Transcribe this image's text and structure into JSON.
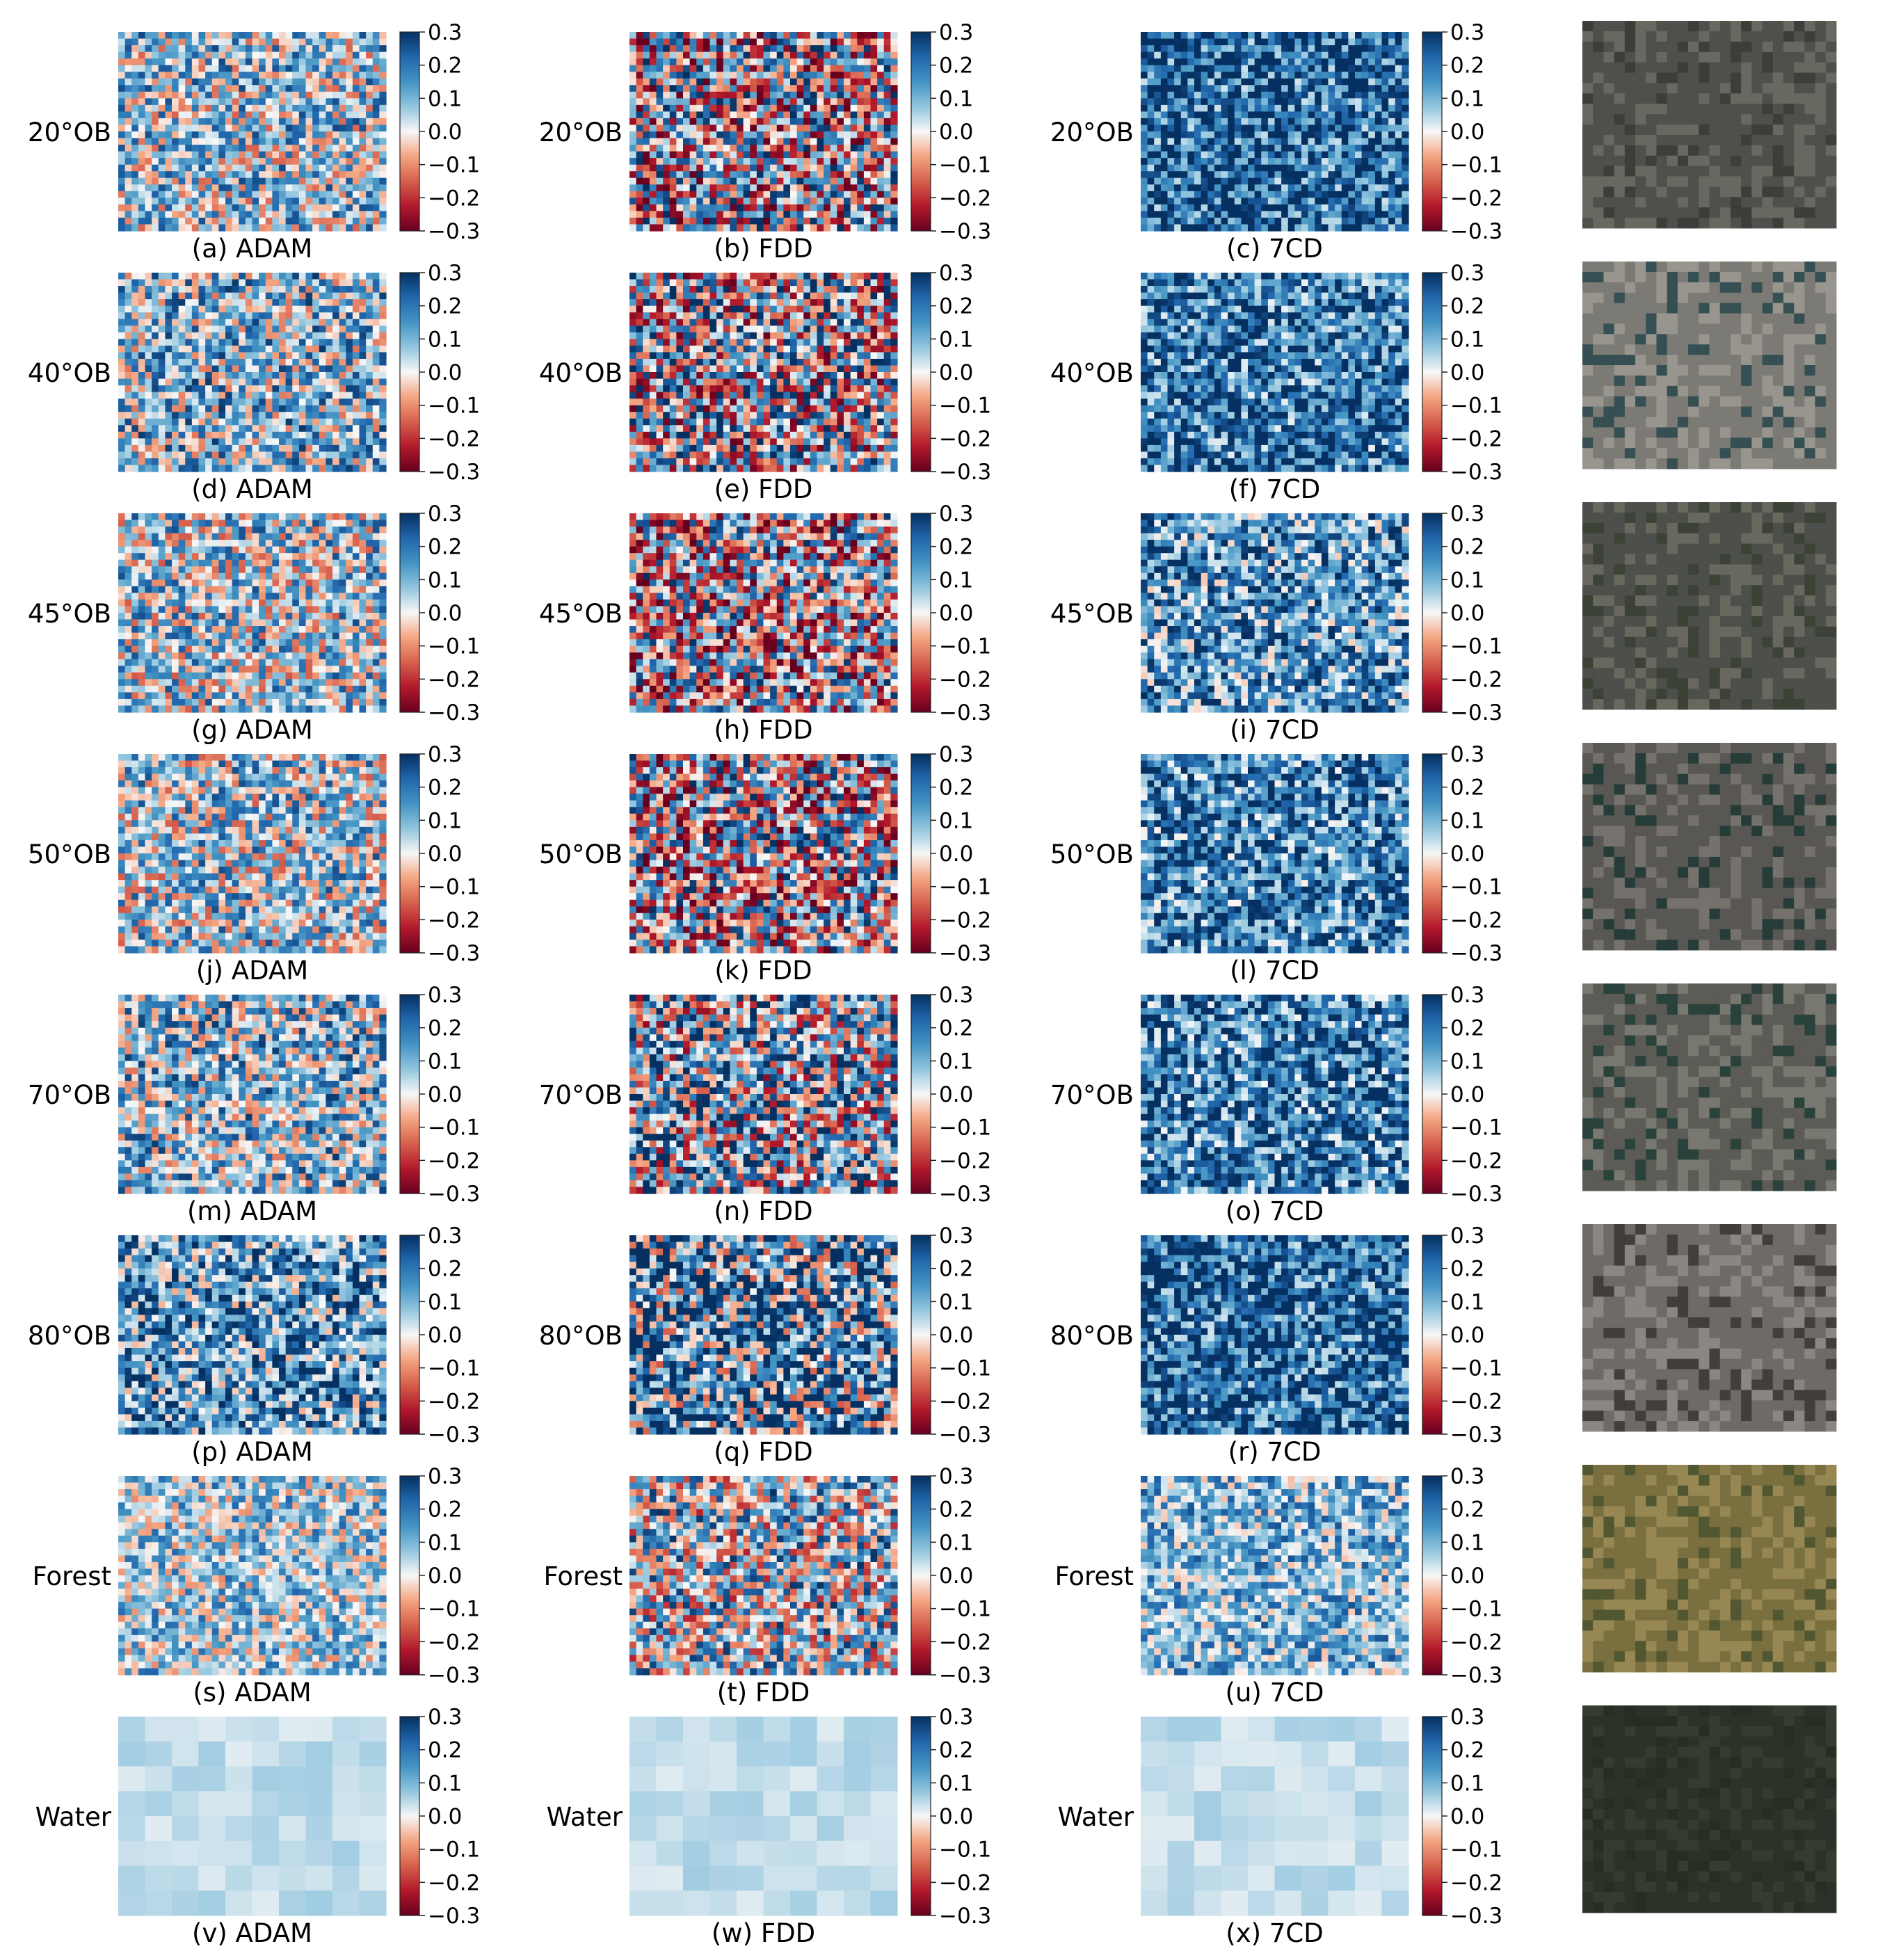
{
  "figure": {
    "colorbar": {
      "ticks": [
        "0.3",
        "0.2",
        "0.1",
        "0.0",
        "−0.1",
        "−0.2",
        "−0.3"
      ],
      "range": [
        -0.3,
        0.3
      ],
      "colormap": "RdBu",
      "colors": {
        "low": "#67001f",
        "mid": "#f7f7f7",
        "high": "#053061"
      }
    },
    "columns": [
      "ADAM",
      "FDD",
      "7CD"
    ],
    "rows": [
      {
        "label": "20°OB",
        "captions": [
          "(a) ADAM",
          "(b) FDD",
          "(c) 7CD"
        ],
        "mean_values": [
          0.06,
          0.0,
          0.22
        ],
        "photo_colors": [
          "#4f4f4c",
          "#6a6a64",
          "#3a3c38"
        ]
      },
      {
        "label": "40°OB",
        "captions": [
          "(d) ADAM",
          "(e) FDD",
          "(f) 7CD"
        ],
        "mean_values": [
          0.08,
          0.02,
          0.2
        ],
        "photo_colors": [
          "#7c7a74",
          "#9a9890",
          "#2e4a50"
        ]
      },
      {
        "label": "45°OB",
        "captions": [
          "(g) ADAM",
          "(h) FDD",
          "(i) 7CD"
        ],
        "mean_values": [
          0.05,
          -0.02,
          0.15
        ],
        "photo_colors": [
          "#4e4f4a",
          "#6c6a62",
          "#3b4034"
        ]
      },
      {
        "label": "50°OB",
        "captions": [
          "(j) ADAM",
          "(k) FDD",
          "(l) 7CD"
        ],
        "mean_values": [
          0.05,
          -0.01,
          0.18
        ],
        "photo_colors": [
          "#595853",
          "#787670",
          "#1f3a35"
        ]
      },
      {
        "label": "70°OB",
        "captions": [
          "(m) ADAM",
          "(n) FDD",
          "(o) 7CD"
        ],
        "mean_values": [
          0.08,
          0.06,
          0.19
        ],
        "photo_colors": [
          "#5c5b55",
          "#7b7a73",
          "#23403a"
        ]
      },
      {
        "label": "80°OB",
        "captions": [
          "(p) ADAM",
          "(q) FDD",
          "(r) 7CD"
        ],
        "mean_values": [
          0.14,
          0.16,
          0.22
        ],
        "photo_colors": [
          "#6e6a66",
          "#8d8985",
          "#3c3a37"
        ]
      },
      {
        "label": "Forest",
        "captions": [
          "(s) ADAM",
          "(t) FDD",
          "(u) 7CD"
        ],
        "mean_values": [
          0.06,
          0.04,
          0.1
        ],
        "photo_colors": [
          "#7a6f3f",
          "#9a8a55",
          "#4c5430"
        ]
      },
      {
        "label": "Water",
        "captions": [
          "(v) ADAM",
          "(w) FDD",
          "(x) 7CD"
        ],
        "mean_values": [
          0.04,
          0.04,
          0.04
        ],
        "photo_colors": [
          "#2b3328",
          "#353d31",
          "#262e24"
        ]
      }
    ]
  },
  "chart_data": {
    "type": "heatmap",
    "series": [
      {
        "name": "ADAM",
        "values": [
          0.06,
          0.08,
          0.05,
          0.05,
          0.08,
          0.14,
          0.06,
          0.04
        ]
      },
      {
        "name": "FDD",
        "values": [
          0.0,
          0.02,
          -0.02,
          -0.01,
          0.06,
          0.16,
          0.04,
          0.04
        ]
      },
      {
        "name": "7CD",
        "values": [
          0.22,
          0.2,
          0.15,
          0.18,
          0.19,
          0.22,
          0.1,
          0.04
        ]
      }
    ],
    "categories": [
      "20°OB",
      "40°OB",
      "45°OB",
      "50°OB",
      "70°OB",
      "80°OB",
      "Forest",
      "Water"
    ],
    "zlim": [
      -0.3,
      0.3
    ],
    "colorbar_ticks": [
      0.3,
      0.2,
      0.1,
      0.0,
      -0.1,
      -0.2,
      -0.3
    ],
    "grid": false
  }
}
